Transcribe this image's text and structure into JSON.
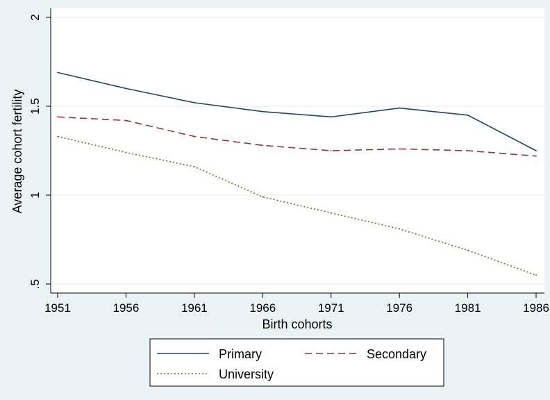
{
  "chart_data": {
    "type": "line",
    "categories": [
      "1951",
      "1956",
      "1961",
      "1966",
      "1971",
      "1976",
      "1981",
      "1986"
    ],
    "x": [
      1951,
      1956,
      1961,
      1966,
      1971,
      1976,
      1981,
      1986
    ],
    "xlabel": "Birth cohorts",
    "ylabel": "Average cohort fertility",
    "ylim": [
      0.5,
      2
    ],
    "yticks": [
      ".5",
      "1",
      "1.5",
      "2"
    ],
    "ytick_values": [
      0.5,
      1,
      1.5,
      2
    ],
    "grid": true,
    "legend_position": "bottom",
    "series": [
      {
        "name": "Primary",
        "color": "#1a476f",
        "style": "solid",
        "values": [
          1.69,
          1.6,
          1.52,
          1.47,
          1.44,
          1.49,
          1.45,
          1.25
        ]
      },
      {
        "name": "Secondary",
        "color": "#90353b",
        "style": "dashed",
        "values": [
          1.44,
          1.42,
          1.33,
          1.28,
          1.25,
          1.26,
          1.25,
          1.22
        ]
      },
      {
        "name": "University",
        "color": "#55752f",
        "style": "dotted",
        "values": [
          1.33,
          1.24,
          1.16,
          0.99,
          0.9,
          0.81,
          0.69,
          0.55
        ]
      }
    ]
  }
}
